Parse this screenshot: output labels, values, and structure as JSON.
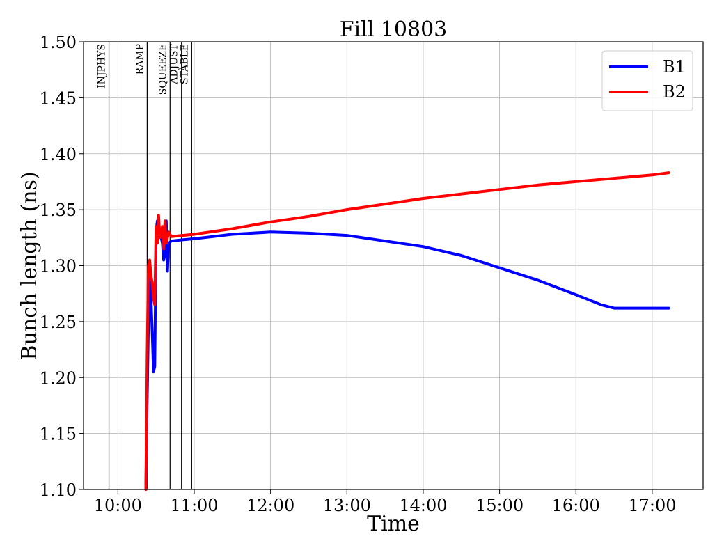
{
  "chart_data": {
    "type": "line",
    "title": "Fill 10803",
    "xlabel": "Time",
    "ylabel": "Bunch length (ns)",
    "xlim": [
      "09:33",
      "17:40"
    ],
    "ylim": [
      1.1,
      1.5
    ],
    "x_ticks": [
      "10:00",
      "11:00",
      "12:00",
      "13:00",
      "14:00",
      "15:00",
      "16:00",
      "17:00"
    ],
    "y_ticks": [
      "1.10",
      "1.15",
      "1.20",
      "1.25",
      "1.30",
      "1.35",
      "1.40",
      "1.45",
      "1.50"
    ],
    "grid": true,
    "legend_position": "top-right",
    "phases": [
      {
        "label": "INJPHYS",
        "time": "09:53"
      },
      {
        "label": "RAMP",
        "time": "10:23"
      },
      {
        "label": "SQUEEZE",
        "time": "10:41"
      },
      {
        "label": "ADJUST",
        "time": "10:50"
      },
      {
        "label": "STABLE",
        "time": "10:58"
      }
    ],
    "series": [
      {
        "name": "B1",
        "color": "#0000ff",
        "points": [
          [
            "10:22",
            1.1
          ],
          [
            "10:23",
            1.18
          ],
          [
            "10:24",
            1.25
          ],
          [
            "10:25",
            1.29
          ],
          [
            "10:26",
            1.27
          ],
          [
            "10:27",
            1.24
          ],
          [
            "10:28",
            1.205
          ],
          [
            "10:29",
            1.21
          ],
          [
            "10:30",
            1.33
          ],
          [
            "10:31",
            1.34
          ],
          [
            "10:32",
            1.325
          ],
          [
            "10:33",
            1.33
          ],
          [
            "10:35",
            1.32
          ],
          [
            "10:36",
            1.305
          ],
          [
            "10:37",
            1.31
          ],
          [
            "10:38",
            1.34
          ],
          [
            "10:39",
            1.295
          ],
          [
            "10:40",
            1.32
          ],
          [
            "10:42",
            1.322
          ],
          [
            "10:50",
            1.323
          ],
          [
            "11:00",
            1.324
          ],
          [
            "11:30",
            1.328
          ],
          [
            "12:00",
            1.33
          ],
          [
            "12:30",
            1.329
          ],
          [
            "13:00",
            1.327
          ],
          [
            "13:30",
            1.322
          ],
          [
            "14:00",
            1.317
          ],
          [
            "14:30",
            1.309
          ],
          [
            "15:00",
            1.298
          ],
          [
            "15:30",
            1.287
          ],
          [
            "16:00",
            1.274
          ],
          [
            "16:20",
            1.265
          ],
          [
            "16:30",
            1.262
          ],
          [
            "17:00",
            1.262
          ],
          [
            "17:13",
            1.262
          ]
        ]
      },
      {
        "name": "B2",
        "color": "#ff0000",
        "points": [
          [
            "10:22",
            1.1
          ],
          [
            "10:23",
            1.22
          ],
          [
            "10:24",
            1.3
          ],
          [
            "10:25",
            1.305
          ],
          [
            "10:26",
            1.29
          ],
          [
            "10:27",
            1.285
          ],
          [
            "10:28",
            1.27
          ],
          [
            "10:29",
            1.265
          ],
          [
            "10:30",
            1.335
          ],
          [
            "10:31",
            1.32
          ],
          [
            "10:32",
            1.345
          ],
          [
            "10:33",
            1.325
          ],
          [
            "10:35",
            1.335
          ],
          [
            "10:36",
            1.315
          ],
          [
            "10:37",
            1.34
          ],
          [
            "10:38",
            1.32
          ],
          [
            "10:40",
            1.33
          ],
          [
            "10:42",
            1.326
          ],
          [
            "11:00",
            1.328
          ],
          [
            "11:30",
            1.333
          ],
          [
            "12:00",
            1.339
          ],
          [
            "12:30",
            1.344
          ],
          [
            "13:00",
            1.35
          ],
          [
            "13:30",
            1.355
          ],
          [
            "14:00",
            1.36
          ],
          [
            "14:30",
            1.364
          ],
          [
            "15:00",
            1.368
          ],
          [
            "15:30",
            1.372
          ],
          [
            "16:00",
            1.375
          ],
          [
            "16:30",
            1.378
          ],
          [
            "17:00",
            1.381
          ],
          [
            "17:13",
            1.383
          ]
        ]
      }
    ]
  }
}
